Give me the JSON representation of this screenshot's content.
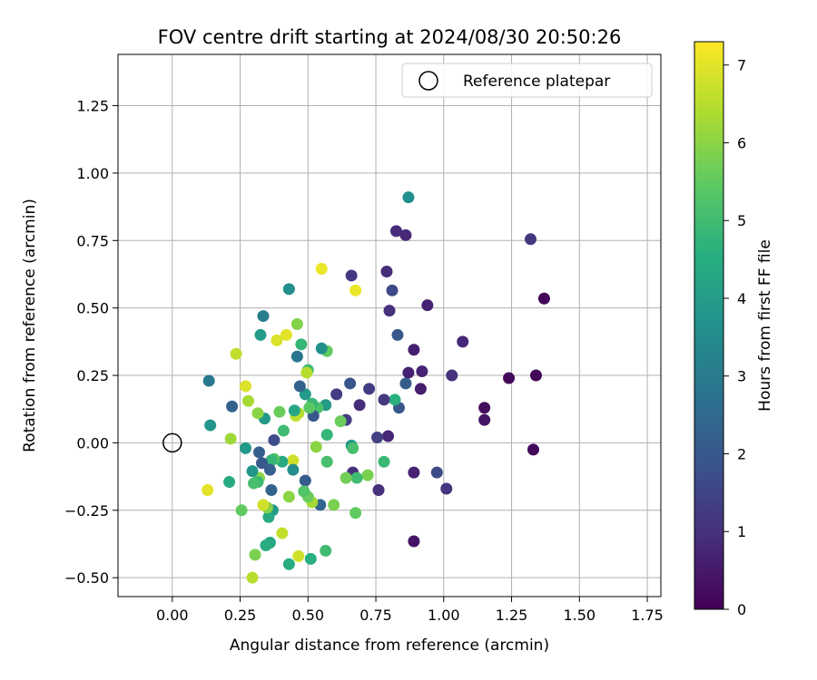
{
  "chart_data": {
    "type": "scatter",
    "title": "FOV centre drift starting at 2024/08/30 20:50:26",
    "xlabel": "Angular distance from reference (arcmin)",
    "ylabel": "Rotation from reference (arcmin)",
    "xlim": [
      -0.2,
      1.8
    ],
    "ylim": [
      -0.57,
      1.44
    ],
    "x_ticks": [
      0.0,
      0.25,
      0.5,
      0.75,
      1.0,
      1.25,
      1.5,
      1.75
    ],
    "x_tick_labels": [
      "0.00",
      "0.25",
      "0.50",
      "0.75",
      "1.00",
      "1.25",
      "1.50",
      "1.75"
    ],
    "y_ticks": [
      -0.5,
      -0.25,
      0.0,
      0.25,
      0.5,
      0.75,
      1.0,
      1.25
    ],
    "y_tick_labels": [
      "−0.50",
      "−0.25",
      "0.00",
      "0.25",
      "0.50",
      "0.75",
      "1.00",
      "1.25"
    ],
    "grid": true,
    "legend": {
      "placement": "top-right",
      "label": "Reference platepar"
    },
    "reference_point": {
      "x": 0.0,
      "y": 0.0
    },
    "colorbar": {
      "label": "Hours from first FF file",
      "colormap": "viridis",
      "range": [
        0,
        7.3
      ],
      "ticks": [
        0,
        1,
        2,
        3,
        4,
        5,
        6,
        7
      ],
      "tick_labels": [
        "0",
        "1",
        "2",
        "3",
        "4",
        "5",
        "6",
        "7"
      ]
    },
    "points": [
      {
        "x": 1.37,
        "y": 0.535,
        "c": 0.1
      },
      {
        "x": 1.34,
        "y": 0.25,
        "c": 0.1
      },
      {
        "x": 1.24,
        "y": 0.24,
        "c": 0.15
      },
      {
        "x": 1.33,
        "y": -0.025,
        "c": 0.15
      },
      {
        "x": 1.15,
        "y": 0.13,
        "c": 0.2
      },
      {
        "x": 1.15,
        "y": 0.085,
        "c": 0.4
      },
      {
        "x": 1.32,
        "y": 0.755,
        "c": 1.2
      },
      {
        "x": 1.07,
        "y": 0.375,
        "c": 0.8
      },
      {
        "x": 1.03,
        "y": 0.25,
        "c": 1.0
      },
      {
        "x": 1.01,
        "y": -0.17,
        "c": 1.1
      },
      {
        "x": 0.975,
        "y": -0.11,
        "c": 1.6
      },
      {
        "x": 0.94,
        "y": 0.51,
        "c": 0.7
      },
      {
        "x": 0.92,
        "y": 0.265,
        "c": 0.7
      },
      {
        "x": 0.915,
        "y": 0.2,
        "c": 0.6
      },
      {
        "x": 0.89,
        "y": -0.365,
        "c": 0.4
      },
      {
        "x": 0.89,
        "y": 0.345,
        "c": 0.6
      },
      {
        "x": 0.89,
        "y": -0.11,
        "c": 0.7
      },
      {
        "x": 0.87,
        "y": 0.26,
        "c": 0.7
      },
      {
        "x": 0.87,
        "y": 0.91,
        "c": 3.6
      },
      {
        "x": 0.86,
        "y": 0.77,
        "c": 0.8
      },
      {
        "x": 0.825,
        "y": 0.785,
        "c": 0.9
      },
      {
        "x": 0.83,
        "y": 0.4,
        "c": 2.0
      },
      {
        "x": 0.835,
        "y": 0.13,
        "c": 2.0
      },
      {
        "x": 0.86,
        "y": 0.22,
        "c": 2.1
      },
      {
        "x": 0.82,
        "y": 0.16,
        "c": 4.6
      },
      {
        "x": 0.81,
        "y": 0.565,
        "c": 1.6
      },
      {
        "x": 0.8,
        "y": 0.49,
        "c": 1.0
      },
      {
        "x": 0.79,
        "y": 0.635,
        "c": 0.9
      },
      {
        "x": 0.795,
        "y": 0.025,
        "c": 0.8
      },
      {
        "x": 0.78,
        "y": 0.16,
        "c": 1.2
      },
      {
        "x": 0.755,
        "y": 0.02,
        "c": 1.4
      },
      {
        "x": 0.76,
        "y": -0.175,
        "c": 1.0
      },
      {
        "x": 0.78,
        "y": -0.07,
        "c": 4.9
      },
      {
        "x": 0.725,
        "y": 0.2,
        "c": 1.3
      },
      {
        "x": 0.72,
        "y": -0.12,
        "c": 5.8
      },
      {
        "x": 0.69,
        "y": 0.14,
        "c": 0.9
      },
      {
        "x": 0.675,
        "y": 0.565,
        "c": 7.1
      },
      {
        "x": 0.66,
        "y": 0.62,
        "c": 1.2
      },
      {
        "x": 0.655,
        "y": 0.22,
        "c": 1.9
      },
      {
        "x": 0.665,
        "y": -0.11,
        "c": 1.0
      },
      {
        "x": 0.66,
        "y": -0.01,
        "c": 3.9
      },
      {
        "x": 0.665,
        "y": -0.02,
        "c": 5.1
      },
      {
        "x": 0.68,
        "y": -0.13,
        "c": 5.0
      },
      {
        "x": 0.675,
        "y": -0.26,
        "c": 5.5
      },
      {
        "x": 0.64,
        "y": 0.085,
        "c": 1.3
      },
      {
        "x": 0.64,
        "y": -0.13,
        "c": 5.7
      },
      {
        "x": 0.62,
        "y": 0.08,
        "c": 5.6
      },
      {
        "x": 0.605,
        "y": 0.18,
        "c": 1.3
      },
      {
        "x": 0.595,
        "y": -0.23,
        "c": 5.8
      },
      {
        "x": 0.57,
        "y": 0.34,
        "c": 5.5
      },
      {
        "x": 0.565,
        "y": 0.14,
        "c": 4.0
      },
      {
        "x": 0.57,
        "y": 0.03,
        "c": 4.8
      },
      {
        "x": 0.57,
        "y": -0.07,
        "c": 5.1
      },
      {
        "x": 0.565,
        "y": -0.4,
        "c": 5.0
      },
      {
        "x": 0.55,
        "y": 0.645,
        "c": 7.1
      },
      {
        "x": 0.55,
        "y": 0.35,
        "c": 3.6
      },
      {
        "x": 0.545,
        "y": -0.23,
        "c": 2.4
      },
      {
        "x": 0.535,
        "y": 0.13,
        "c": 5.2
      },
      {
        "x": 0.53,
        "y": -0.015,
        "c": 6.0
      },
      {
        "x": 0.52,
        "y": 0.1,
        "c": 2.0
      },
      {
        "x": 0.515,
        "y": 0.145,
        "c": 4.8
      },
      {
        "x": 0.515,
        "y": -0.22,
        "c": 6.3
      },
      {
        "x": 0.51,
        "y": -0.43,
        "c": 4.6
      },
      {
        "x": 0.5,
        "y": 0.27,
        "c": 5.0
      },
      {
        "x": 0.495,
        "y": 0.26,
        "c": 6.5
      },
      {
        "x": 0.505,
        "y": 0.13,
        "c": 5.4
      },
      {
        "x": 0.5,
        "y": -0.2,
        "c": 5.6
      },
      {
        "x": 0.49,
        "y": 0.18,
        "c": 3.9
      },
      {
        "x": 0.49,
        "y": -0.14,
        "c": 2.1
      },
      {
        "x": 0.485,
        "y": -0.18,
        "c": 5.3
      },
      {
        "x": 0.475,
        "y": 0.365,
        "c": 4.8
      },
      {
        "x": 0.47,
        "y": 0.21,
        "c": 2.3
      },
      {
        "x": 0.465,
        "y": 0.11,
        "c": 6.4
      },
      {
        "x": 0.465,
        "y": -0.42,
        "c": 6.8
      },
      {
        "x": 0.46,
        "y": 0.44,
        "c": 5.9
      },
      {
        "x": 0.46,
        "y": 0.32,
        "c": 2.8
      },
      {
        "x": 0.455,
        "y": 0.1,
        "c": 6.6
      },
      {
        "x": 0.45,
        "y": 0.12,
        "c": 4.3
      },
      {
        "x": 0.445,
        "y": -0.065,
        "c": 6.8
      },
      {
        "x": 0.445,
        "y": -0.1,
        "c": 3.5
      },
      {
        "x": 0.43,
        "y": 0.57,
        "c": 3.6
      },
      {
        "x": 0.43,
        "y": -0.2,
        "c": 6.0
      },
      {
        "x": 0.43,
        "y": -0.45,
        "c": 4.5
      },
      {
        "x": 0.42,
        "y": 0.4,
        "c": 7.0
      },
      {
        "x": 0.41,
        "y": 0.045,
        "c": 5.0
      },
      {
        "x": 0.405,
        "y": -0.07,
        "c": 4.4
      },
      {
        "x": 0.405,
        "y": -0.335,
        "c": 6.6
      },
      {
        "x": 0.395,
        "y": 0.115,
        "c": 5.6
      },
      {
        "x": 0.385,
        "y": 0.38,
        "c": 6.9
      },
      {
        "x": 0.375,
        "y": 0.01,
        "c": 1.7
      },
      {
        "x": 0.375,
        "y": -0.06,
        "c": 5.3
      },
      {
        "x": 0.37,
        "y": -0.25,
        "c": 3.9
      },
      {
        "x": 0.365,
        "y": -0.065,
        "c": 4.8
      },
      {
        "x": 0.365,
        "y": -0.175,
        "c": 2.3
      },
      {
        "x": 0.36,
        "y": -0.1,
        "c": 2.2
      },
      {
        "x": 0.36,
        "y": -0.37,
        "c": 4.3
      },
      {
        "x": 0.355,
        "y": -0.275,
        "c": 4.4
      },
      {
        "x": 0.35,
        "y": -0.24,
        "c": 5.9
      },
      {
        "x": 0.345,
        "y": -0.38,
        "c": 4.5
      },
      {
        "x": 0.34,
        "y": 0.09,
        "c": 3.9
      },
      {
        "x": 0.335,
        "y": 0.47,
        "c": 3.1
      },
      {
        "x": 0.335,
        "y": -0.23,
        "c": 6.8
      },
      {
        "x": 0.33,
        "y": -0.075,
        "c": 2.0
      },
      {
        "x": 0.325,
        "y": 0.4,
        "c": 4.0
      },
      {
        "x": 0.32,
        "y": -0.035,
        "c": 2.2
      },
      {
        "x": 0.315,
        "y": 0.11,
        "c": 6.0
      },
      {
        "x": 0.32,
        "y": -0.13,
        "c": 6.0
      },
      {
        "x": 0.315,
        "y": -0.145,
        "c": 4.9
      },
      {
        "x": 0.305,
        "y": -0.415,
        "c": 5.8
      },
      {
        "x": 0.3,
        "y": -0.15,
        "c": 5.1
      },
      {
        "x": 0.295,
        "y": -0.105,
        "c": 3.8
      },
      {
        "x": 0.295,
        "y": -0.5,
        "c": 6.5
      },
      {
        "x": 0.28,
        "y": 0.155,
        "c": 6.3
      },
      {
        "x": 0.27,
        "y": 0.21,
        "c": 6.9
      },
      {
        "x": 0.27,
        "y": -0.02,
        "c": 3.9
      },
      {
        "x": 0.255,
        "y": -0.25,
        "c": 5.5
      },
      {
        "x": 0.235,
        "y": 0.33,
        "c": 6.6
      },
      {
        "x": 0.22,
        "y": 0.135,
        "c": 2.3
      },
      {
        "x": 0.215,
        "y": 0.015,
        "c": 6.2
      },
      {
        "x": 0.21,
        "y": -0.145,
        "c": 4.4
      },
      {
        "x": 0.14,
        "y": 0.065,
        "c": 3.8
      },
      {
        "x": 0.135,
        "y": 0.23,
        "c": 2.9
      },
      {
        "x": 0.13,
        "y": -0.175,
        "c": 7.0
      }
    ]
  }
}
